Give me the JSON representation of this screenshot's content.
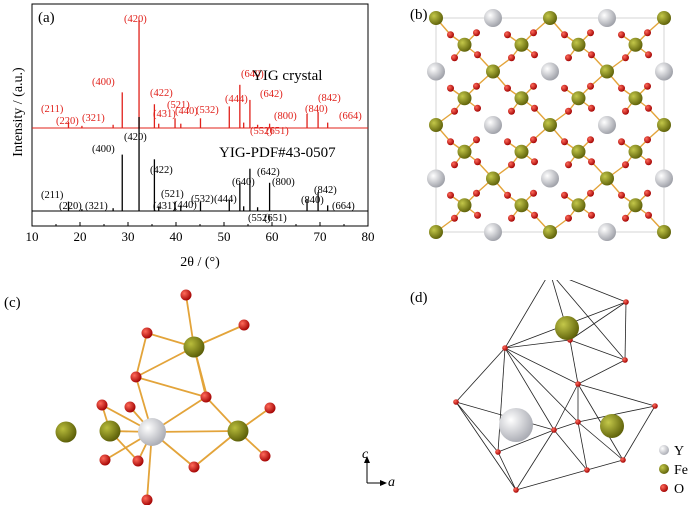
{
  "panels": {
    "a": "(a)",
    "b": "(b)",
    "c": "(c)",
    "d": "(d)"
  },
  "chart_data": {
    "type": "line",
    "xlabel": "2θ / (°)",
    "ylabel": "Intensity / (a.u.)",
    "xlim": [
      10,
      80
    ],
    "x_ticks": [
      "10",
      "20",
      "30",
      "40",
      "50",
      "60",
      "70",
      "80"
    ],
    "grid": false,
    "colors": {
      "crystal": "#e0201a",
      "pdf": "#000000"
    },
    "series": [
      {
        "name": "YIG crystal",
        "peaks": [
          {
            "hkl": "(211)",
            "x": 17.6,
            "y": 0.06
          },
          {
            "hkl": "(220)",
            "x": 20.4,
            "y": 0.02
          },
          {
            "hkl": "(321)",
            "x": 26.9,
            "y": 0.03
          },
          {
            "hkl": "(400)",
            "x": 28.8,
            "y": 0.33
          },
          {
            "hkl": "(420)",
            "x": 32.3,
            "y": 1.0
          },
          {
            "hkl": "(422)",
            "x": 35.5,
            "y": 0.22
          },
          {
            "hkl": "(431)",
            "x": 36.4,
            "y": 0.04
          },
          {
            "hkl": "(521)",
            "x": 39.8,
            "y": 0.09
          },
          {
            "hkl": "(440)",
            "x": 41.0,
            "y": 0.04
          },
          {
            "hkl": "(532)",
            "x": 45.1,
            "y": 0.09
          },
          {
            "hkl": "(444)",
            "x": 51.1,
            "y": 0.2
          },
          {
            "hkl": "(640)",
            "x": 53.3,
            "y": 0.4
          },
          {
            "hkl": "(552)",
            "x": 54.1,
            "y": 0.05
          },
          {
            "hkl": "(642)",
            "x": 55.4,
            "y": 0.26
          },
          {
            "hkl": "(651)",
            "x": 57.0,
            "y": 0.03
          },
          {
            "hkl": "(800)",
            "x": 59.5,
            "y": 0.04
          },
          {
            "hkl": "(840)",
            "x": 67.3,
            "y": 0.13
          },
          {
            "hkl": "(842)",
            "x": 69.6,
            "y": 0.15
          },
          {
            "hkl": "(664)",
            "x": 71.6,
            "y": 0.05
          }
        ]
      },
      {
        "name": "YIG-PDF#43-0507",
        "peaks": [
          {
            "hkl": "(211)",
            "x": 17.6,
            "y": 0.1
          },
          {
            "hkl": "(220)",
            "x": 20.4,
            "y": 0.02
          },
          {
            "hkl": "(321)",
            "x": 26.9,
            "y": 0.03
          },
          {
            "hkl": "(400)",
            "x": 28.8,
            "y": 0.6
          },
          {
            "hkl": "(420)",
            "x": 32.3,
            "y": 1.0
          },
          {
            "hkl": "(422)",
            "x": 35.5,
            "y": 0.55
          },
          {
            "hkl": "(431)",
            "x": 36.4,
            "y": 0.05
          },
          {
            "hkl": "(521)",
            "x": 39.8,
            "y": 0.1
          },
          {
            "hkl": "(440)",
            "x": 41.0,
            "y": 0.06
          },
          {
            "hkl": "(532)",
            "x": 45.1,
            "y": 0.1
          },
          {
            "hkl": "(444)",
            "x": 51.1,
            "y": 0.12
          },
          {
            "hkl": "(640)",
            "x": 53.3,
            "y": 0.3
          },
          {
            "hkl": "(552)",
            "x": 54.1,
            "y": 0.05
          },
          {
            "hkl": "(642)",
            "x": 55.4,
            "y": 0.45
          },
          {
            "hkl": "(651)",
            "x": 57.0,
            "y": 0.04
          },
          {
            "hkl": "(800)",
            "x": 59.5,
            "y": 0.3
          },
          {
            "hkl": "(840)",
            "x": 67.3,
            "y": 0.12
          },
          {
            "hkl": "(842)",
            "x": 69.6,
            "y": 0.2
          },
          {
            "hkl": "(664)",
            "x": 71.6,
            "y": 0.06
          }
        ]
      }
    ],
    "annotations": [
      "YIG crystal",
      "YIG-PDF#43-0507"
    ]
  },
  "axes_c": {
    "c": "c",
    "a": "a"
  },
  "legend_d": [
    {
      "label": "Y",
      "color": "#d8d9de"
    },
    {
      "label": "Fe",
      "color": "#7a7d12"
    },
    {
      "label": "O",
      "color": "#d40a0a"
    }
  ]
}
